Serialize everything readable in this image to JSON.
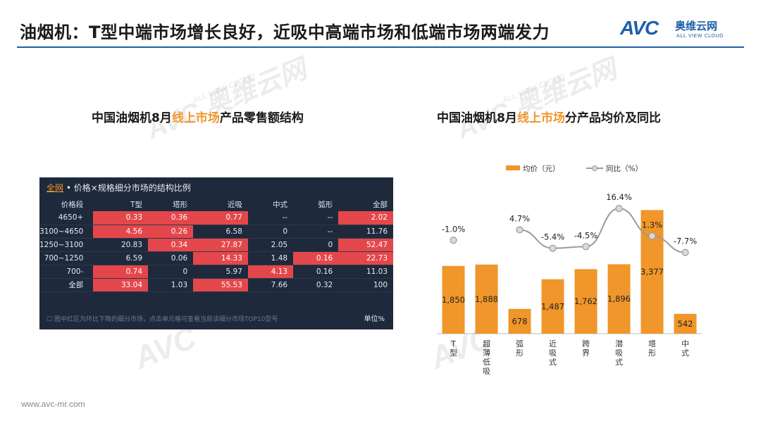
{
  "header": {
    "title": "油烟机：T型中端市场增长良好，近吸中高端市场和低端市场两端发力",
    "logo_avc": "AVC",
    "logo_cn": "奥维云网",
    "logo_en": "ALL VIEW CLOUD"
  },
  "watermark": {
    "mark": "AVC",
    "cn": "奥维云网",
    "en": "ALL VIEW CLOUD"
  },
  "left": {
    "title_pre": "中国油烟机8月",
    "title_hl": "线上市场",
    "title_post": "产品零售额结构",
    "panel_tab": "全网",
    "panel_title": " • 价格×规格细分市场的结构比例",
    "headers": [
      "价格段",
      "T型",
      "塔形",
      "近吸",
      "中式",
      "弧形",
      "全部"
    ],
    "rows": [
      [
        "4650+",
        "0.33",
        "0.36",
        "0.77",
        "--",
        "--",
        "2.02"
      ],
      [
        "3100~4650",
        "4.56",
        "0.26",
        "6.58",
        "0",
        "--",
        "11.76"
      ],
      [
        "1250~3100",
        "20.83",
        "0.34",
        "27.87",
        "2.05",
        "0",
        "52.47"
      ],
      [
        "700~1250",
        "6.59",
        "0.06",
        "14.33",
        "1.48",
        "0.16",
        "22.73"
      ],
      [
        "700-",
        "0.74",
        "0",
        "5.97",
        "4.13",
        "0.16",
        "11.03"
      ],
      [
        "全部",
        "33.04",
        "1.03",
        "55.53",
        "7.66",
        "0.32",
        "100"
      ]
    ],
    "red_cells": [
      [
        1,
        2,
        3,
        6
      ],
      [
        1,
        2
      ],
      [
        2,
        3,
        6
      ],
      [
        3,
        5,
        6
      ],
      [
        1,
        4
      ],
      [
        1,
        3
      ]
    ],
    "footnote": "图中红区为环比下降的细分市场，点击单元格可查看当前该细分市场TOP10型号",
    "unit": "单位%"
  },
  "right": {
    "title_pre": "中国油烟机8月",
    "title_hl": "线上市场",
    "title_post": "分产品均价及同比"
  },
  "chart_data": {
    "type": "bar",
    "categories": [
      "T型",
      "超薄低吸",
      "弧形",
      "近吸式",
      "跨界",
      "潜吸式",
      "塔形",
      "中式"
    ],
    "series": [
      {
        "name": "均价（元）",
        "type": "bar",
        "values": [
          1850,
          1888,
          678,
          1487,
          1762,
          1896,
          3377,
          542
        ],
        "labels": [
          "1,850",
          "1,888",
          "678",
          "1,487",
          "1,762",
          "1,896",
          "3,377",
          "542"
        ]
      },
      {
        "name": "同比（%）",
        "type": "line",
        "values": [
          -1.0,
          null,
          4.7,
          -5.4,
          -4.5,
          16.4,
          1.3,
          -7.7
        ],
        "labels": [
          "-1.0%",
          "",
          "4.7%",
          "-5.4%",
          "-4.5%",
          "16.4%",
          "1.3%",
          "-7.7%"
        ]
      }
    ],
    "colors": {
      "bar": "#f0962a",
      "line": "#9b9b9b",
      "point_fill": "#d9d9d9"
    }
  },
  "footer": {
    "url": "www.avc-mr.com"
  }
}
